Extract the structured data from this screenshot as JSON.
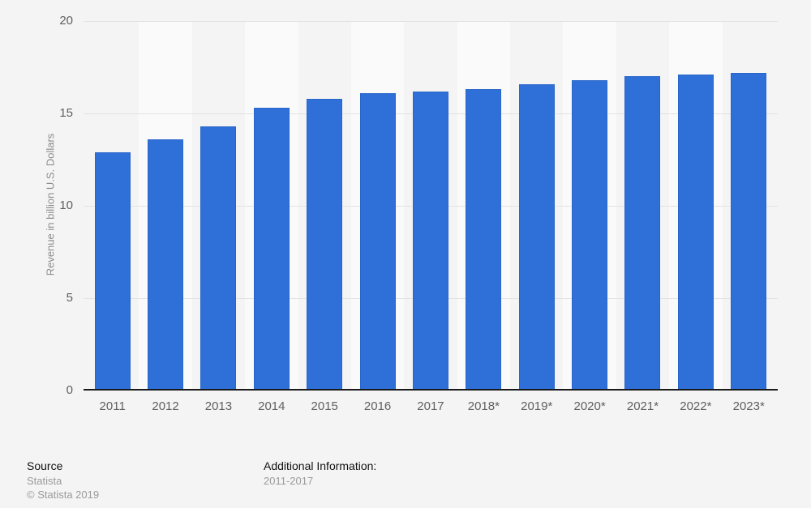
{
  "chart_data": {
    "type": "bar",
    "title": "",
    "xlabel": "",
    "ylabel": "Revenue in billion U.S. Dollars",
    "categories": [
      "2011",
      "2012",
      "2013",
      "2014",
      "2015",
      "2016",
      "2017",
      "2018*",
      "2019*",
      "2020*",
      "2021*",
      "2022*",
      "2023*"
    ],
    "values": [
      12.9,
      13.6,
      14.3,
      15.3,
      15.8,
      16.1,
      16.2,
      16.3,
      16.6,
      16.8,
      17.0,
      17.1,
      17.2
    ],
    "ylim": [
      0,
      20
    ],
    "yticks": [
      0,
      5,
      10,
      15,
      20
    ],
    "grid": true,
    "legend_position": "none",
    "bar_color": "#2e70d8",
    "background_color": "#f4f4f4",
    "stripe_color": "#fafafa",
    "gridline_color": "#e2e2e2",
    "axis_line_color": "#1a1a1a",
    "tick_label_color": "#606060"
  },
  "footer": {
    "source_label": "Source",
    "source_value": "Statista",
    "copyright": "© Statista 2019",
    "additional_label": "Additional Information:",
    "additional_value": "2011-2017"
  }
}
